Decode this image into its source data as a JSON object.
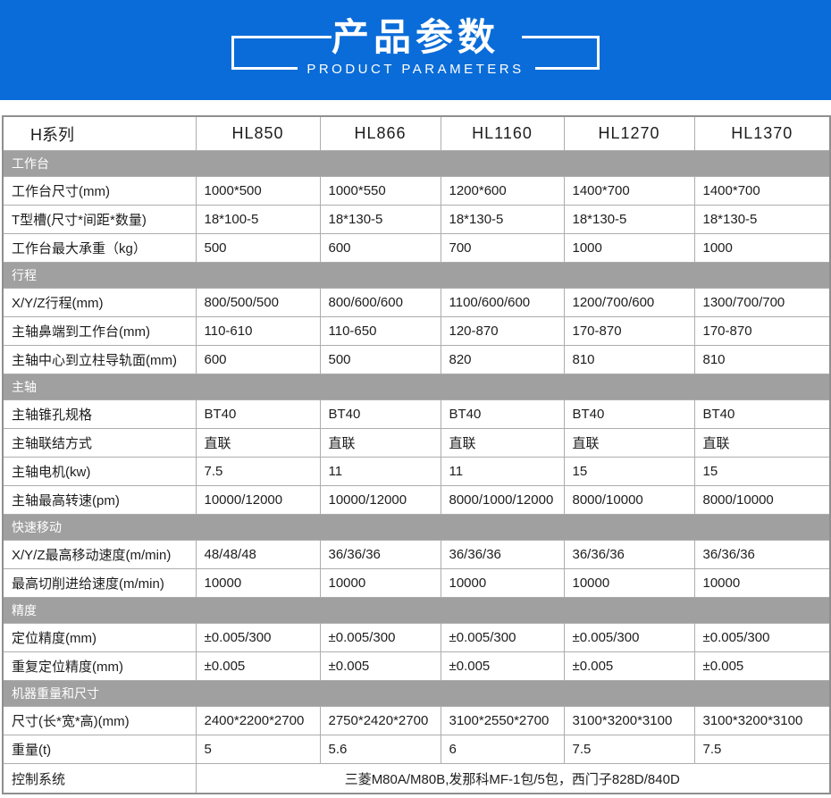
{
  "banner": {
    "title": "产品参数",
    "subtitle": "PRODUCT PARAMETERS"
  },
  "colors": {
    "banner_blue": "#0a6cd8",
    "section_gray": "#a0a0a0",
    "border_outer": "#8f8f8f",
    "border_inner": "#adadad"
  },
  "table": {
    "series_label": "H系列",
    "models": [
      "HL850",
      "HL866",
      "HL1160",
      "HL1270",
      "HL1370"
    ],
    "sections": [
      {
        "title": "工作台",
        "rows": [
          {
            "label": "工作台尺寸(mm)",
            "values": [
              "1000*500",
              "1000*550",
              "1200*600",
              "1400*700",
              "1400*700"
            ]
          },
          {
            "label": "T型槽(尺寸*间距*数量)",
            "values": [
              "18*100-5",
              "18*130-5",
              "18*130-5",
              "18*130-5",
              "18*130-5"
            ]
          },
          {
            "label": "工作台最大承重（kg）",
            "values": [
              "500",
              "600",
              "700",
              "1000",
              "1000"
            ]
          }
        ]
      },
      {
        "title": "行程",
        "rows": [
          {
            "label": "X/Y/Z行程(mm)",
            "values": [
              "800/500/500",
              "800/600/600",
              "1100/600/600",
              "1200/700/600",
              "1300/700/700"
            ]
          },
          {
            "label": "主轴鼻端到工作台(mm)",
            "values": [
              "110-610",
              "110-650",
              "120-870",
              "170-870",
              "170-870"
            ]
          },
          {
            "label": "主轴中心到立柱导轨面(mm)",
            "values": [
              "600",
              "500",
              "820",
              "810",
              "810"
            ]
          }
        ]
      },
      {
        "title": "主轴",
        "rows": [
          {
            "label": "主轴锥孔规格",
            "values": [
              "BT40",
              "BT40",
              "BT40",
              "BT40",
              "BT40"
            ]
          },
          {
            "label": "主轴联结方式",
            "values": [
              "直联",
              "直联",
              "直联",
              "直联",
              "直联"
            ]
          },
          {
            "label": "主轴电机(kw)",
            "values": [
              "7.5",
              "11",
              "11",
              "15",
              "15"
            ]
          },
          {
            "label": "主轴最高转速(pm)",
            "values": [
              "10000/12000",
              "10000/12000",
              "8000/1000/12000",
              "8000/10000",
              "8000/10000"
            ]
          }
        ]
      },
      {
        "title": "快速移动",
        "rows": [
          {
            "label": "X/Y/Z最高移动速度(m/min)",
            "values": [
              "48/48/48",
              "36/36/36",
              "36/36/36",
              "36/36/36",
              "36/36/36"
            ]
          },
          {
            "label": "最高切削进给速度(m/min)",
            "values": [
              "10000",
              "10000",
              "10000",
              "10000",
              "10000"
            ]
          }
        ]
      },
      {
        "title": "精度",
        "rows": [
          {
            "label": "定位精度(mm)",
            "values": [
              "±0.005/300",
              "±0.005/300",
              "±0.005/300",
              "±0.005/300",
              "±0.005/300"
            ]
          },
          {
            "label": "重复定位精度(mm)",
            "values": [
              "±0.005",
              "±0.005",
              "±0.005",
              "±0.005",
              "±0.005"
            ]
          }
        ]
      },
      {
        "title": "机器重量和尺寸",
        "rows": [
          {
            "label": "尺寸(长*宽*高)(mm)",
            "values": [
              "2400*2200*2700",
              "2750*2420*2700",
              "3100*2550*2700",
              "3100*3200*3100",
              "3100*3200*3100"
            ]
          },
          {
            "label": "重量(t)",
            "values": [
              "5",
              "5.6",
              "6",
              "7.5",
              "7.5"
            ]
          },
          {
            "label": "控制系统",
            "merged_value": "三菱M80A/M80B,发那科MF-1包/5包，西门子828D/840D"
          }
        ]
      }
    ]
  }
}
